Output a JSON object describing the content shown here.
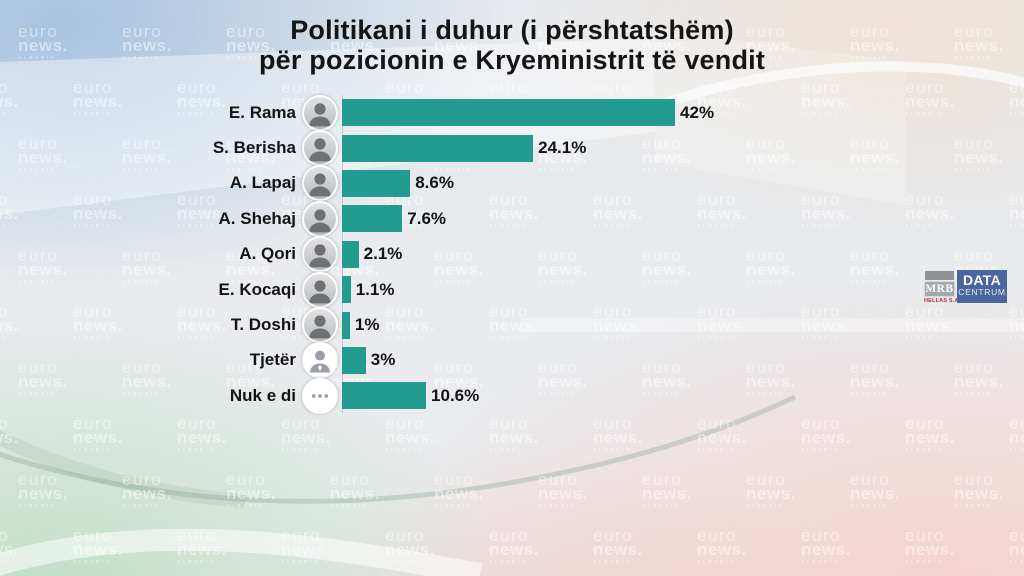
{
  "title": {
    "line1": "Politikani i duhur (i përshtatshëm)",
    "line2": "për pozicionin e Kryeministrit të vendit"
  },
  "branding": {
    "watermark": {
      "line1": "euro",
      "line2": "news.",
      "line3": "ALBANIA"
    },
    "mrb": {
      "name": "MRB",
      "sub": "HELLAS S.A."
    },
    "datacentrum": {
      "line1": "DATA",
      "line2": "CENTRUM"
    }
  },
  "colors": {
    "bar": "#229b91",
    "mrb_box": "#a3a8ad",
    "mrb_sub_red": "#b5342c",
    "datacentrum_blue": "#4a66a0"
  },
  "chart_data": {
    "type": "bar",
    "orientation": "horizontal",
    "title": "Politikani i duhur (i përshtatshëm) për pozicionin e Kryeministrit të vendit",
    "xlabel": "",
    "ylabel": "",
    "xlim": [
      0,
      45
    ],
    "grid": false,
    "legend": false,
    "bar_color": "#229b91",
    "categories": [
      "E. Rama",
      "S. Berisha",
      "A. Lapaj",
      "A. Shehaj",
      "A. Qori",
      "E. Kocaqi",
      "T. Doshi",
      "Tjetër",
      "Nuk e di"
    ],
    "values": [
      42,
      24.1,
      8.6,
      7.6,
      2.1,
      1.1,
      1,
      3,
      10.6
    ],
    "value_labels": [
      "42%",
      "24.1%",
      "8.6%",
      "7.6%",
      "2.1%",
      "1.1%",
      "1%",
      "3%",
      "10.6%"
    ],
    "rows": [
      {
        "label": "E. Rama",
        "value": 42,
        "value_label": "42%",
        "avatar": "avatar-e-rama",
        "avatar_type": "photo"
      },
      {
        "label": "S. Berisha",
        "value": 24.1,
        "value_label": "24.1%",
        "avatar": "avatar-s-berisha",
        "avatar_type": "photo"
      },
      {
        "label": "A. Lapaj",
        "value": 8.6,
        "value_label": "8.6%",
        "avatar": "avatar-a-lapaj",
        "avatar_type": "photo"
      },
      {
        "label": "A. Shehaj",
        "value": 7.6,
        "value_label": "7.6%",
        "avatar": "avatar-a-shehaj",
        "avatar_type": "photo"
      },
      {
        "label": "A. Qori",
        "value": 2.1,
        "value_label": "2.1%",
        "avatar": "avatar-a-qori",
        "avatar_type": "photo"
      },
      {
        "label": "E. Kocaqi",
        "value": 1.1,
        "value_label": "1.1%",
        "avatar": "avatar-e-kocaqi",
        "avatar_type": "photo"
      },
      {
        "label": "T. Doshi",
        "value": 1,
        "value_label": "1%",
        "avatar": "avatar-t-doshi",
        "avatar_type": "photo"
      },
      {
        "label": "Tjetër",
        "value": 3,
        "value_label": "3%",
        "avatar": "person-icon",
        "avatar_type": "person"
      },
      {
        "label": "Nuk e di",
        "value": 10.6,
        "value_label": "10.6%",
        "avatar": "ellipsis-icon",
        "avatar_type": "ellipsis"
      }
    ]
  }
}
